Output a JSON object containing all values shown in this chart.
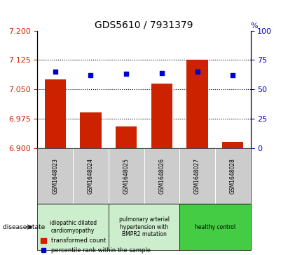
{
  "title": "GDS5610 / 7931379",
  "samples": [
    "GSM1648023",
    "GSM1648024",
    "GSM1648025",
    "GSM1648026",
    "GSM1648027",
    "GSM1648028"
  ],
  "bar_values": [
    7.075,
    6.99,
    6.955,
    7.065,
    7.125,
    6.915
  ],
  "bar_baseline": 6.9,
  "percentile_values": [
    65,
    62,
    63,
    64,
    65,
    62
  ],
  "bar_color": "#cc2200",
  "dot_color": "#0000cc",
  "ylim_left": [
    6.9,
    7.2
  ],
  "ylim_right": [
    0,
    100
  ],
  "yticks_left": [
    6.9,
    6.975,
    7.05,
    7.125,
    7.2
  ],
  "yticks_right": [
    0,
    25,
    50,
    75,
    100
  ],
  "hlines": [
    6.975,
    7.05,
    7.125
  ],
  "disease_groups": [
    {
      "label": "idiopathic dilated\ncardiomyopathy",
      "samples": [
        0,
        1
      ],
      "color": "#cceecc"
    },
    {
      "label": "pulmonary arterial\nhypertension with\nBMPR2 mutation",
      "samples": [
        2,
        3
      ],
      "color": "#cceecc"
    },
    {
      "label": "healthy control",
      "samples": [
        4,
        5
      ],
      "color": "#44cc44"
    }
  ],
  "disease_state_label": "disease state",
  "legend_bar_label": "transformed count",
  "legend_dot_label": "percentile rank within the sample",
  "left_axis_color": "#cc2200",
  "right_axis_color": "#0000cc",
  "title_fontsize": 10,
  "tick_fontsize": 8,
  "bar_width": 0.6,
  "sample_box_color": "#cccccc",
  "fig_bg": "#ffffff"
}
